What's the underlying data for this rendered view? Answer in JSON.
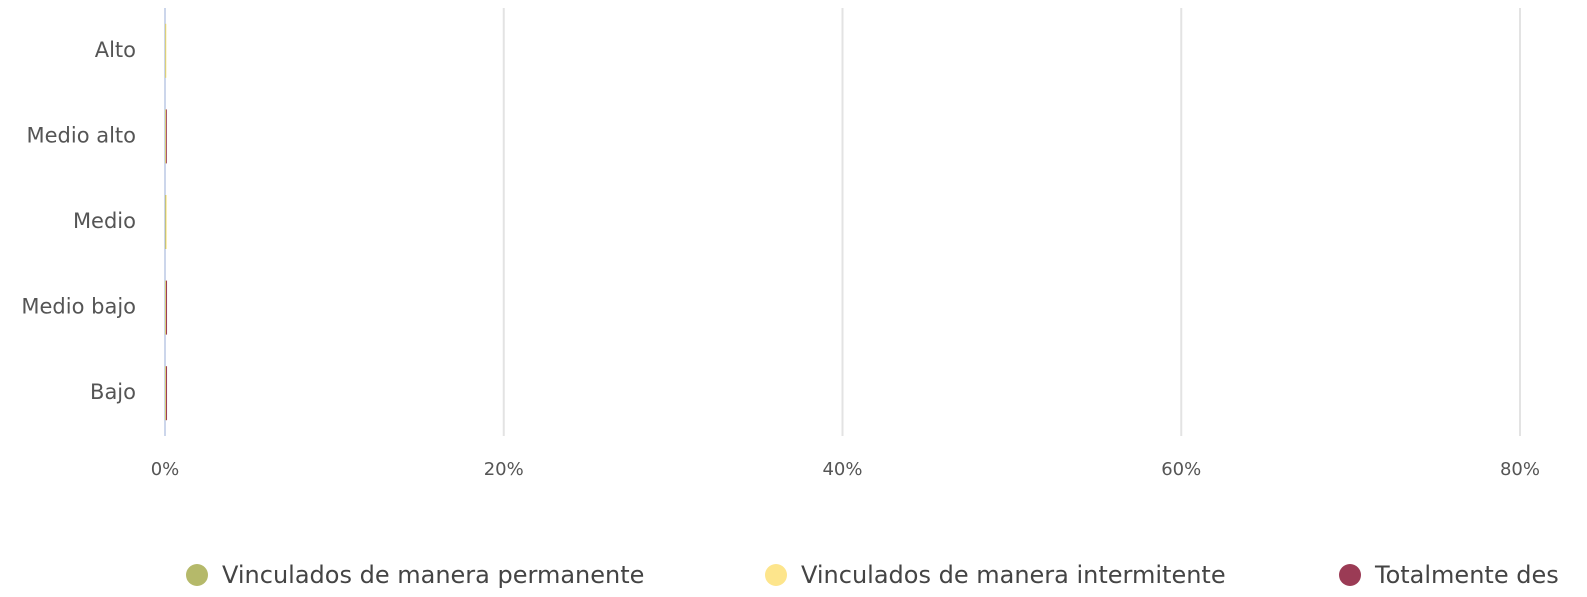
{
  "chart_data": {
    "type": "stacked-barh",
    "categories": [
      "Alto",
      "Medio alto",
      "Medio",
      "Medio bajo",
      "Bajo"
    ],
    "series": [
      {
        "name": "Vinculados de manera permanente",
        "color": "#b5b96a",
        "values": [
          0.03,
          0.03,
          0.05,
          0.03,
          0.03
        ]
      },
      {
        "name": "Vinculados de manera intermitente",
        "color": "#fde58c",
        "values": [
          0.05,
          0.03,
          0.05,
          0.03,
          0.03
        ]
      },
      {
        "name": "Totalmente des",
        "color": "#9b3b55",
        "values": [
          0,
          0.05,
          0,
          0.06,
          0.06
        ]
      }
    ],
    "xlim": [
      0,
      80
    ],
    "xticks": [
      {
        "value": 0,
        "label": "0%"
      },
      {
        "value": 20,
        "label": "20%"
      },
      {
        "value": 40,
        "label": "40%"
      },
      {
        "value": 60,
        "label": "60%"
      },
      {
        "value": 80,
        "label": "80%"
      }
    ],
    "grid": true
  }
}
